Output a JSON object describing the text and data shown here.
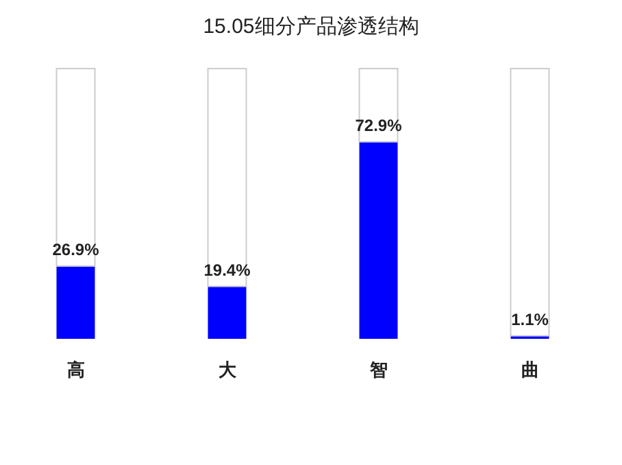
{
  "chart_data": {
    "type": "bar",
    "title": "15.05细分产品渗透结构",
    "categories": [
      "高",
      "大",
      "智",
      "曲"
    ],
    "ylim": [
      0,
      100
    ],
    "stacked": true,
    "series": [
      {
        "values": [
          26.9,
          19.4,
          72.9,
          1.1
        ],
        "color": "#0000ff",
        "value_labels": [
          "26.9%",
          "19.4%",
          "72.9%",
          "1.1%"
        ]
      },
      {
        "values": [
          73.1,
          80.6,
          27.1,
          98.9
        ],
        "color": "#ffffff"
      }
    ]
  }
}
